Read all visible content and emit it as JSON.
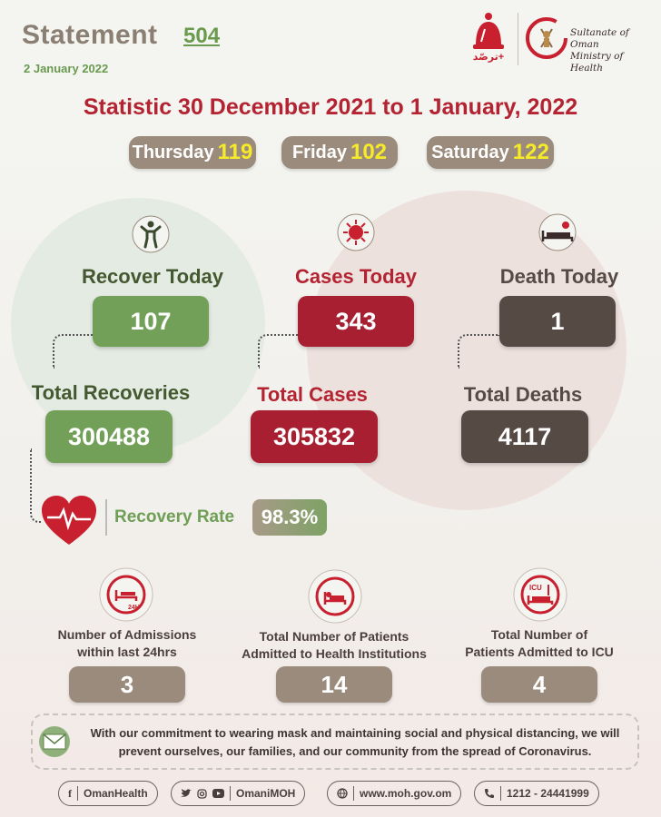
{
  "header": {
    "statement_label": "Statement",
    "statement_number": "504",
    "date": "2 January 2022",
    "tarasud_label": "ترصّد+",
    "ministry_line1": "Sultanate of Oman",
    "ministry_line2": "Ministry of Health"
  },
  "main_title": "Statistic 30 December 2021 to 1 January, 2022",
  "days": [
    {
      "label": "Thursday",
      "value": "119"
    },
    {
      "label": "Friday",
      "value": "102"
    },
    {
      "label": "Saturday",
      "value": "122"
    }
  ],
  "recover": {
    "today_label": "Recover Today",
    "today_value": "107",
    "total_label": "Total Recoveries",
    "total_value": "300488"
  },
  "cases": {
    "today_label": "Cases Today",
    "today_value": "343",
    "total_label": "Total Cases",
    "total_value": "305832"
  },
  "deaths": {
    "today_label": "Death Today",
    "today_value": "1",
    "total_label": "Total Deaths",
    "total_value": "4117"
  },
  "recovery_rate": {
    "label": "Recovery Rate",
    "value": "98.3%"
  },
  "hospital": [
    {
      "line1": "Number of Admissions",
      "line2": "within last 24hrs",
      "value": "3",
      "icon": "bed-24h-icon"
    },
    {
      "line1": "Total Number of Patients",
      "line2": "Admitted to Health Institutions",
      "value": "14",
      "icon": "hospital-bed-icon"
    },
    {
      "line1": "Total Number of",
      "line2": "Patients Admitted to ICU",
      "value": "4",
      "icon": "icu-bed-icon"
    }
  ],
  "message": {
    "line1": "With our commitment to wearing mask and  maintaining social and physical distancing, we will",
    "line2": "prevent ourselves, our families, and our community from the spread of Coronavirus."
  },
  "footer": {
    "facebook": "OmanHealth",
    "twitter_instagram_youtube": "OmaniMOH",
    "website": "www.moh.gov.om",
    "phone": "1212 - 24441999"
  },
  "colors": {
    "green": "#73a058",
    "red": "#a71f31",
    "dark": "#564a45",
    "taupe": "#9a8b7c",
    "title_red": "#b42331",
    "yellow": "#f7ea28"
  }
}
